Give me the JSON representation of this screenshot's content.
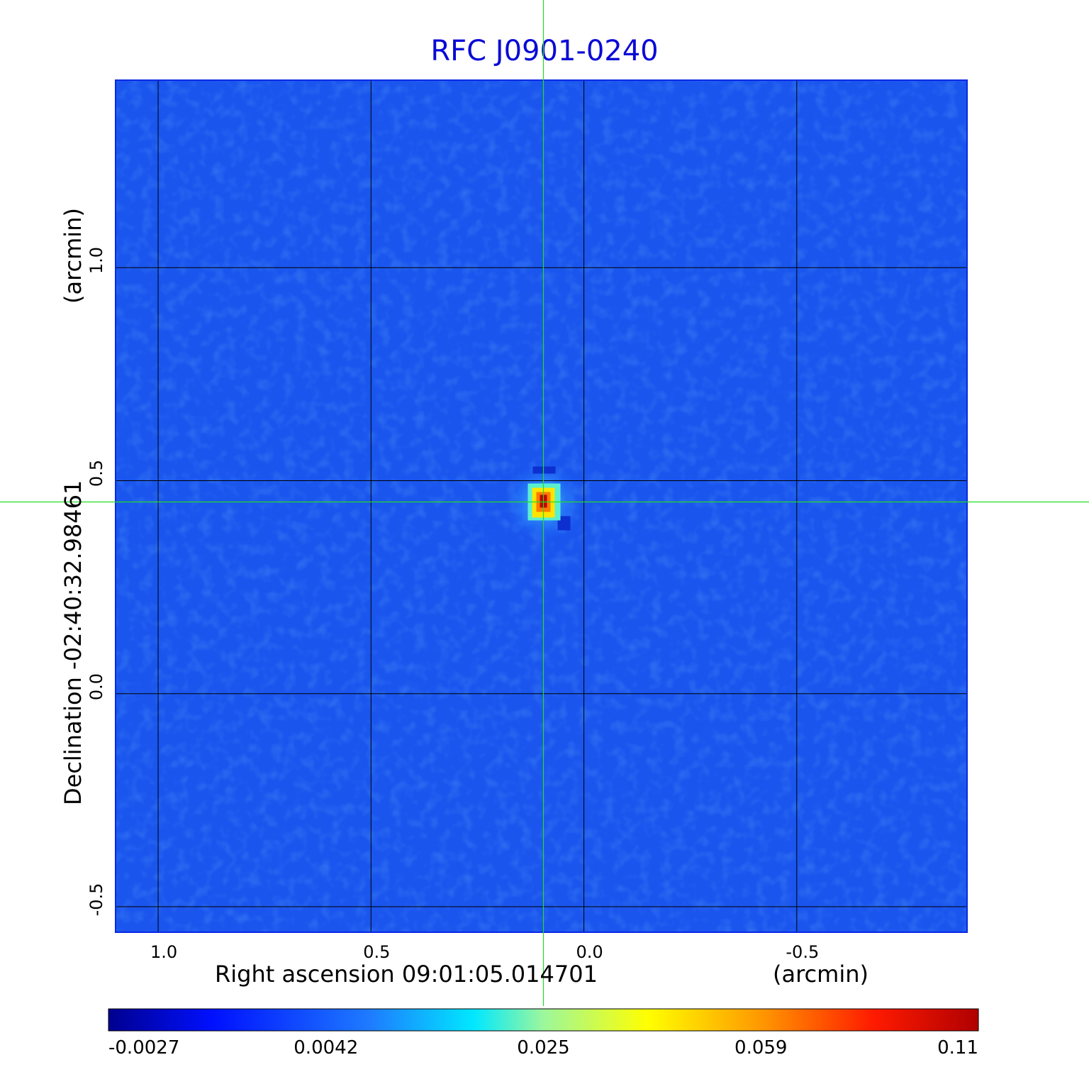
{
  "chart_data": {
    "type": "heatmap",
    "title": "RFC J0901-0240",
    "xlabel": "Right ascension  09:01:05.014701",
    "xunit": "(arcmin)",
    "ylabel": "Declination  -02:40:32.98461",
    "yunit": "(arcmin)",
    "x_ticks": [
      "1.0",
      "0.5",
      "0.0",
      "-0.5"
    ],
    "x_tick_values": [
      1.0,
      0.5,
      0.0,
      -0.5
    ],
    "y_ticks": [
      "1.0",
      "0.5",
      "0.0",
      "-0.5"
    ],
    "y_tick_values": [
      1.0,
      0.5,
      0.0,
      -0.5
    ],
    "xlim": [
      1.1,
      -0.9
    ],
    "ylim": [
      -0.56,
      1.44
    ],
    "grid": true,
    "crosshair": {
      "x": 0.095,
      "y": 0.45
    },
    "peak": {
      "x": 0.095,
      "y": 0.45,
      "value": 0.11
    },
    "colorbar": {
      "ticks": [
        "-0.0027",
        "0.0042",
        "0.025",
        "0.059",
        "0.11"
      ],
      "min": -0.0027,
      "max": 0.11,
      "colormap": "jet"
    },
    "background_color": "#1a55ee",
    "crosshair_color": "#22dd22"
  }
}
